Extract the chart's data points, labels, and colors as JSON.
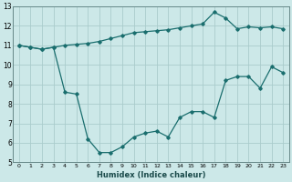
{
  "xlabel": "Humidex (Indice chaleur)",
  "ylabel": "",
  "background_color": "#cce8e8",
  "grid_color": "#aacccc",
  "line_color": "#1a6e6e",
  "xlim": [
    -0.5,
    23.5
  ],
  "ylim": [
    5,
    13
  ],
  "yticks": [
    5,
    6,
    7,
    8,
    9,
    10,
    11,
    12,
    13
  ],
  "xtick_labels": [
    "0",
    "1",
    "2",
    "3",
    "4",
    "5",
    "6",
    "7",
    "8",
    "9",
    "10",
    "11",
    "12",
    "13",
    "14",
    "15",
    "16",
    "17",
    "18",
    "19",
    "20",
    "21",
    "22",
    "23"
  ],
  "series1_x": [
    0,
    1,
    2,
    3,
    4,
    5,
    6,
    7,
    8,
    9,
    10,
    11,
    12,
    13,
    14,
    15,
    16,
    17,
    18,
    19,
    20,
    21,
    22,
    23
  ],
  "series1_y": [
    11.0,
    10.9,
    10.8,
    10.9,
    11.0,
    11.05,
    11.1,
    11.2,
    11.35,
    11.5,
    11.65,
    11.7,
    11.75,
    11.8,
    11.9,
    12.0,
    12.1,
    12.7,
    12.4,
    11.85,
    11.95,
    11.9,
    11.95,
    11.85
  ],
  "series2_x": [
    0,
    1,
    2,
    3,
    4,
    5,
    6,
    7,
    8,
    9,
    10,
    11,
    12,
    13,
    14,
    15,
    16,
    17,
    18,
    19,
    20,
    21,
    22,
    23
  ],
  "series2_y": [
    11.0,
    10.9,
    10.8,
    10.9,
    8.6,
    8.5,
    6.2,
    5.5,
    5.5,
    5.8,
    6.3,
    6.5,
    6.6,
    6.3,
    7.3,
    7.6,
    7.6,
    7.3,
    9.2,
    9.4,
    9.4,
    8.8,
    9.9,
    9.6
  ]
}
